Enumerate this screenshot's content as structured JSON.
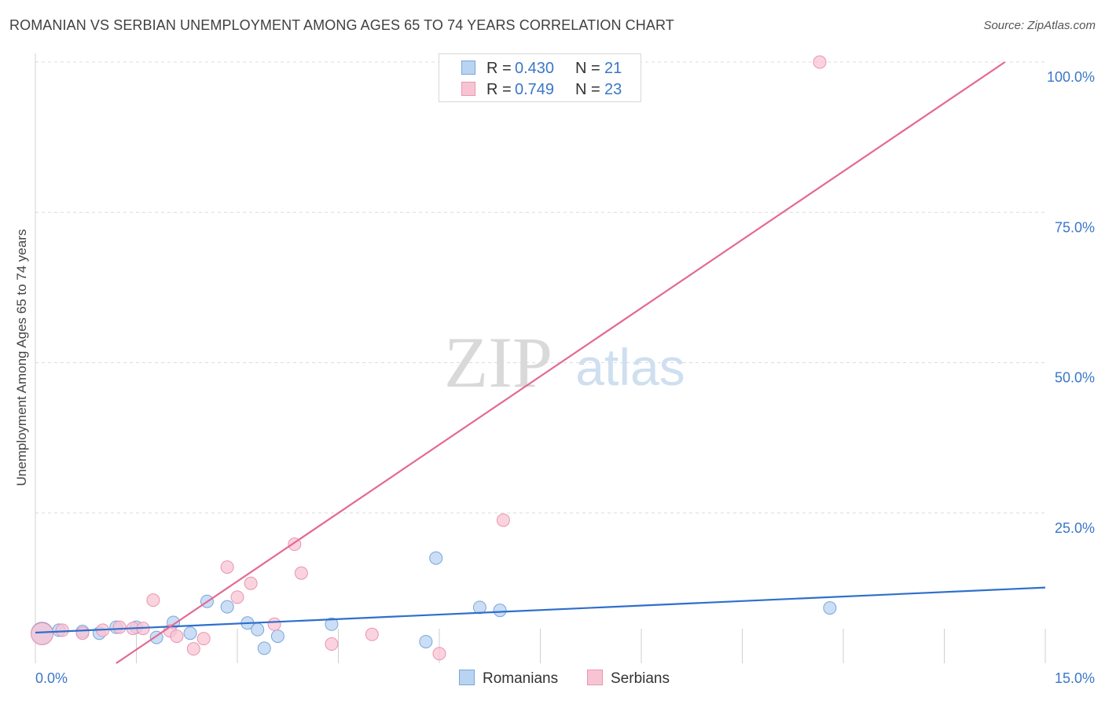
{
  "header": {
    "title": "ROMANIAN VS SERBIAN UNEMPLOYMENT AMONG AGES 65 TO 74 YEARS CORRELATION CHART",
    "source": "Source: ZipAtlas.com"
  },
  "watermark": {
    "zip": "ZIP",
    "atlas": "atlas"
  },
  "legend_top": [
    {
      "r_label": "R =",
      "r_value": "0.430",
      "n_label": "N =",
      "n_value": "21"
    },
    {
      "r_label": "R =",
      "r_value": "0.749",
      "n_label": "N =",
      "n_value": "23"
    }
  ],
  "legend_bottom": [
    {
      "label": "Romanians"
    },
    {
      "label": "Serbians"
    }
  ],
  "colors": {
    "blue_fill": "#b9d3f2",
    "blue_stroke": "#7aa6da",
    "blue_line": "#2f6fcc",
    "pink_fill": "#f8c4d4",
    "pink_stroke": "#e995b0",
    "pink_line": "#e4698f",
    "tick_label": "#3a77c8",
    "grid": "#dcdcdc"
  },
  "chart_data": {
    "type": "scatter",
    "title": "ROMANIAN VS SERBIAN UNEMPLOYMENT AMONG AGES 65 TO 74 YEARS CORRELATION CHART",
    "xlabel": "",
    "ylabel": "Unemployment Among Ages 65 to 74 years",
    "xlim": [
      0,
      15
    ],
    "ylim": [
      0,
      100
    ],
    "x_tick_labels": [
      {
        "value": 0,
        "label": "0.0%"
      },
      {
        "value": 15,
        "label": "15.0%"
      }
    ],
    "y_tick_labels": [
      {
        "value": 25,
        "label": "25.0%"
      },
      {
        "value": 50,
        "label": "50.0%"
      },
      {
        "value": 75,
        "label": "75.0%"
      },
      {
        "value": 100,
        "label": "100.0%"
      }
    ],
    "x_minor_ticks": [
      1.5,
      3.0,
      4.5,
      6.0,
      7.5,
      9.0,
      10.5,
      12.0,
      13.5,
      15.0
    ],
    "grid": true,
    "series": [
      {
        "name": "Romanians",
        "r": 0.43,
        "n": 21,
        "trend": {
          "x": [
            0,
            15
          ],
          "y": 5.1
        },
        "trend_end": {
          "x": 15,
          "y": 12.6
        },
        "points": [
          {
            "x": 0.1,
            "y": 5.0,
            "size": "large"
          },
          {
            "x": 0.35,
            "y": 5.5
          },
          {
            "x": 0.7,
            "y": 5.3
          },
          {
            "x": 0.95,
            "y": 5.0
          },
          {
            "x": 1.2,
            "y": 6.0
          },
          {
            "x": 1.5,
            "y": 6.0
          },
          {
            "x": 1.8,
            "y": 4.3
          },
          {
            "x": 2.05,
            "y": 6.8
          },
          {
            "x": 2.3,
            "y": 5.0
          },
          {
            "x": 2.55,
            "y": 10.3
          },
          {
            "x": 2.85,
            "y": 9.4
          },
          {
            "x": 3.15,
            "y": 6.7
          },
          {
            "x": 3.3,
            "y": 5.6
          },
          {
            "x": 3.4,
            "y": 2.5
          },
          {
            "x": 3.6,
            "y": 4.5
          },
          {
            "x": 4.4,
            "y": 6.5
          },
          {
            "x": 5.8,
            "y": 3.6
          },
          {
            "x": 5.95,
            "y": 17.5
          },
          {
            "x": 6.6,
            "y": 9.3
          },
          {
            "x": 6.9,
            "y": 8.8
          },
          {
            "x": 11.8,
            "y": 9.2
          }
        ]
      },
      {
        "name": "Serbians",
        "r": 0.749,
        "n": 23,
        "trend_start": {
          "x": 1.2,
          "y": 0
        },
        "trend_end": {
          "x": 14.4,
          "y": 100
        },
        "points": [
          {
            "x": 0.1,
            "y": 4.9,
            "size": "large"
          },
          {
            "x": 0.4,
            "y": 5.5
          },
          {
            "x": 0.7,
            "y": 5.0
          },
          {
            "x": 1.0,
            "y": 5.5
          },
          {
            "x": 1.25,
            "y": 6.0
          },
          {
            "x": 1.45,
            "y": 5.8
          },
          {
            "x": 1.6,
            "y": 5.8
          },
          {
            "x": 1.75,
            "y": 10.5
          },
          {
            "x": 2.0,
            "y": 5.4
          },
          {
            "x": 2.1,
            "y": 4.5
          },
          {
            "x": 2.35,
            "y": 2.4
          },
          {
            "x": 2.5,
            "y": 4.1
          },
          {
            "x": 2.85,
            "y": 16.0
          },
          {
            "x": 3.0,
            "y": 11.0
          },
          {
            "x": 3.2,
            "y": 13.3
          },
          {
            "x": 3.55,
            "y": 6.5
          },
          {
            "x": 3.85,
            "y": 19.8
          },
          {
            "x": 3.95,
            "y": 15.0
          },
          {
            "x": 4.4,
            "y": 3.2
          },
          {
            "x": 5.0,
            "y": 4.8
          },
          {
            "x": 6.0,
            "y": 1.6
          },
          {
            "x": 6.95,
            "y": 23.8
          },
          {
            "x": 11.65,
            "y": 100
          }
        ]
      }
    ]
  }
}
